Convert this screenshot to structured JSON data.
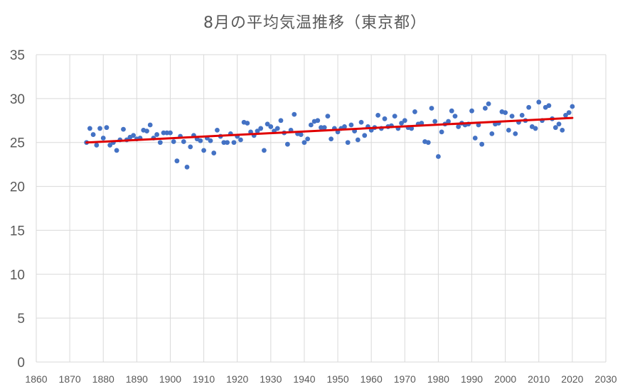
{
  "chart_data": {
    "type": "scatter",
    "title": "8月の平均気温推移（東京都）",
    "xlabel": "",
    "ylabel": "",
    "xlim": [
      1860,
      2030
    ],
    "ylim": [
      0,
      35
    ],
    "xticks": [
      "1860",
      "1870",
      "1880",
      "1890",
      "1900",
      "1910",
      "1920",
      "1930",
      "1940",
      "1950",
      "1960",
      "1970",
      "1980",
      "1990",
      "2000",
      "2010",
      "2020",
      "2030"
    ],
    "yticks": [
      "0",
      "5",
      "10",
      "15",
      "20",
      "25",
      "30",
      "35"
    ],
    "grid": true,
    "legend": "none",
    "colors": {
      "points": "#4472c4",
      "trendline": "#e00000",
      "grid": "#d9d9d9"
    },
    "trendline": {
      "x": [
        1875,
        2020
      ],
      "y": [
        25.0,
        27.8
      ]
    },
    "series": [
      {
        "x": [
          1875,
          1876,
          1877,
          1878,
          1879,
          1880,
          1881,
          1882,
          1883,
          1884,
          1885,
          1886,
          1887,
          1888,
          1889,
          1890,
          1891,
          1892,
          1893,
          1894,
          1895,
          1896,
          1897,
          1898,
          1899,
          1900,
          1901,
          1902,
          1903,
          1904,
          1905,
          1906,
          1907,
          1908,
          1909,
          1910,
          1911,
          1912,
          1913,
          1914,
          1915,
          1916,
          1917,
          1918,
          1919,
          1920,
          1921,
          1922,
          1923,
          1924,
          1925,
          1926,
          1927,
          1928,
          1929,
          1930,
          1931,
          1932,
          1933,
          1934,
          1935,
          1936,
          1937,
          1938,
          1939,
          1940,
          1941,
          1942,
          1943,
          1944,
          1945,
          1946,
          1947,
          1948,
          1949,
          1950,
          1951,
          1952,
          1953,
          1954,
          1955,
          1956,
          1957,
          1958,
          1959,
          1960,
          1961,
          1962,
          1963,
          1964,
          1965,
          1966,
          1967,
          1968,
          1969,
          1970,
          1971,
          1972,
          1973,
          1974,
          1975,
          1976,
          1977,
          1978,
          1979,
          1980,
          1981,
          1982,
          1983,
          1984,
          1985,
          1986,
          1987,
          1988,
          1989,
          1990,
          1991,
          1992,
          1993,
          1994,
          1995,
          1996,
          1997,
          1998,
          1999,
          2000,
          2001,
          2002,
          2003,
          2004,
          2005,
          2006,
          2007,
          2008,
          2009,
          2010,
          2011,
          2012,
          2013,
          2014,
          2015,
          2016,
          2017,
          2018,
          2019,
          2020
        ],
        "y": [
          25.0,
          26.6,
          25.9,
          24.7,
          26.6,
          25.5,
          26.7,
          24.7,
          25.0,
          24.1,
          25.3,
          26.5,
          25.3,
          25.6,
          25.8,
          25.4,
          25.5,
          26.4,
          26.3,
          27.0,
          25.5,
          25.9,
          25.0,
          26.1,
          26.1,
          26.1,
          25.1,
          22.9,
          25.7,
          25.1,
          22.2,
          24.5,
          25.8,
          25.4,
          25.2,
          24.1,
          25.5,
          25.2,
          23.8,
          26.4,
          25.7,
          25.0,
          25.0,
          26.0,
          25.0,
          25.7,
          25.3,
          27.3,
          27.2,
          26.2,
          25.8,
          26.3,
          26.6,
          24.1,
          27.1,
          26.8,
          26.3,
          26.6,
          27.5,
          26.1,
          24.8,
          26.4,
          28.2,
          26.0,
          25.9,
          25.0,
          25.4,
          27.0,
          27.4,
          27.5,
          26.7,
          26.7,
          28.0,
          25.4,
          26.6,
          26.2,
          26.6,
          26.8,
          25.0,
          27.0,
          26.3,
          25.3,
          27.3,
          25.8,
          26.8,
          26.4,
          26.7,
          28.1,
          26.6,
          27.7,
          26.8,
          26.9,
          28.0,
          26.6,
          27.2,
          27.5,
          26.7,
          26.6,
          28.5,
          27.1,
          27.2,
          25.1,
          25.0,
          28.9,
          27.4,
          23.4,
          26.2,
          27.1,
          27.4,
          28.6,
          28.0,
          26.8,
          27.2,
          27.0,
          27.1,
          28.6,
          25.5,
          27.0,
          24.8,
          28.9,
          29.4,
          26.0,
          27.1,
          27.2,
          28.5,
          28.4,
          26.4,
          28.0,
          26.0,
          27.3,
          28.1,
          27.5,
          29.0,
          26.8,
          26.6,
          29.6,
          27.5,
          29.0,
          29.2,
          27.7,
          26.7,
          27.1,
          26.4,
          28.1,
          28.4,
          29.1
        ]
      }
    ]
  }
}
